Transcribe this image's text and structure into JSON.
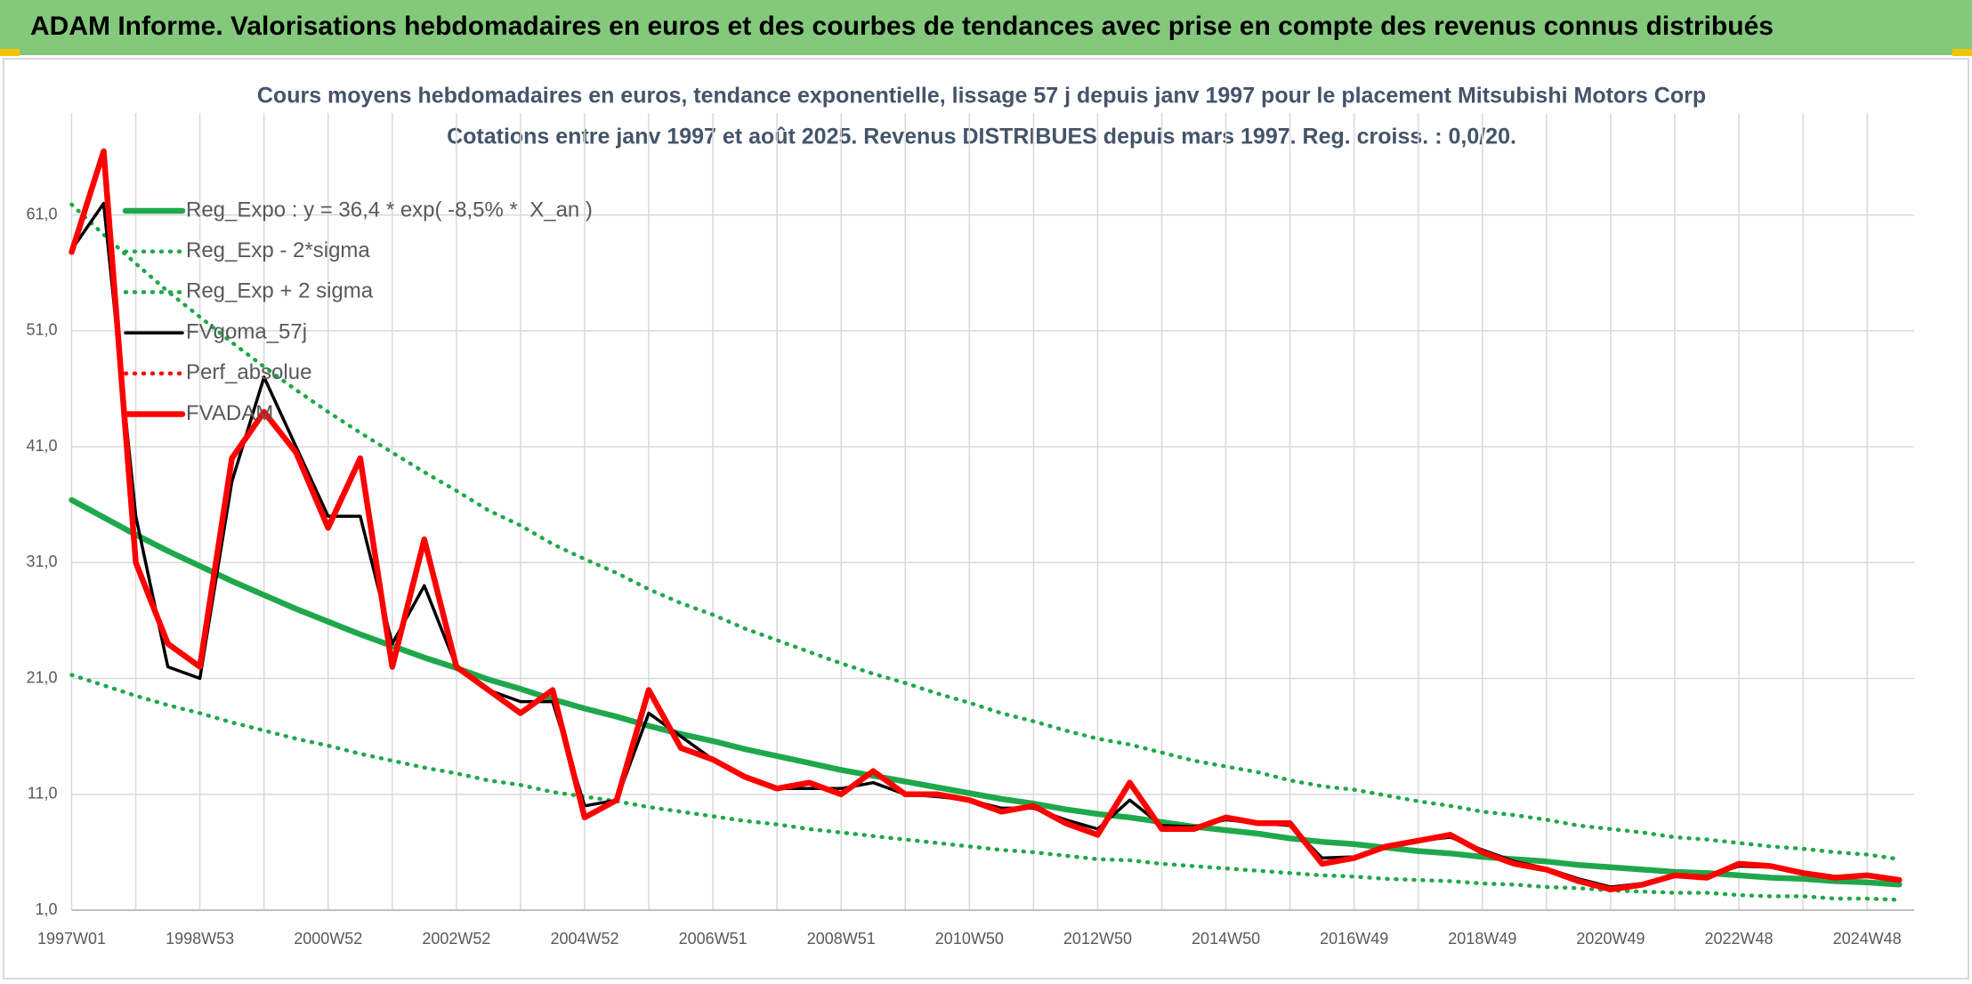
{
  "header": {
    "title": "ADAM Informe. Valorisations hebdomadaires en euros et des courbes de tendances avec prise en compte des revenus connus distribués"
  },
  "chart_data": {
    "type": "line",
    "title": "Cours moyens hebdomadaires en euros, tendance exponentielle, lissage 57 j depuis janv 1997 pour le placement Mitsubishi Motors Corp",
    "subtitle": "Cotations entre janv 1997 et août 2025. Revenus DISTRIBUES depuis mars 1997. Reg. croiss. : 0,0/20.",
    "categories": [
      "1997W01",
      null,
      null,
      null,
      "1998W53",
      null,
      null,
      null,
      "2000W52",
      null,
      null,
      null,
      "2002W52",
      null,
      null,
      null,
      "2004W52",
      null,
      null,
      null,
      "2006W51",
      null,
      null,
      null,
      "2008W51",
      null,
      null,
      null,
      "2010W50",
      null,
      null,
      null,
      "2012W50",
      null,
      null,
      null,
      "2014W50",
      null,
      null,
      null,
      "2016W49",
      null,
      null,
      null,
      "2018W49",
      null,
      null,
      null,
      "2020W49",
      null,
      null,
      null,
      "2022W48",
      null,
      null,
      null,
      "2024W48",
      null
    ],
    "ylim": [
      1,
      69.8
    ],
    "yticks": [
      {
        "value": 1,
        "label": "1,0"
      },
      {
        "value": 11,
        "label": "11,0"
      },
      {
        "value": 21,
        "label": "21,0"
      },
      {
        "value": 31,
        "label": "31,0"
      },
      {
        "value": 41,
        "label": "41,0"
      },
      {
        "value": 51,
        "label": "51,0"
      },
      {
        "value": 61,
        "label": "61,0"
      }
    ],
    "grid": true,
    "legend": "upper left",
    "series": [
      {
        "name": "Reg_Expo : y = 36,4 * exp( -8,5% *  X_an )",
        "color": "#1fa84b",
        "linestyle": "solid",
        "weight": "heavy",
        "values": [
          36.4,
          34.9,
          33.4,
          32.0,
          30.7,
          29.4,
          28.2,
          27.0,
          25.9,
          24.8,
          23.8,
          22.8,
          21.9,
          20.9,
          20.1,
          19.2,
          18.4,
          17.7,
          16.9,
          16.2,
          15.6,
          14.9,
          14.3,
          13.7,
          13.1,
          12.6,
          12.1,
          11.6,
          11.1,
          10.6,
          10.2,
          9.7,
          9.3,
          9.0,
          8.6,
          8.2,
          7.9,
          7.6,
          7.2,
          6.9,
          6.7,
          6.4,
          6.1,
          5.9,
          5.6,
          5.4,
          5.2,
          4.9,
          4.7,
          4.5,
          4.3,
          4.2,
          4.0,
          3.8,
          3.7,
          3.5,
          3.4,
          3.2
        ]
      },
      {
        "name": "Reg_Exp - 2*sigma",
        "color": "#1fa84b",
        "linestyle": "dotted",
        "weight": "medium",
        "values": [
          21.3,
          20.4,
          19.5,
          18.7,
          18.0,
          17.2,
          16.5,
          15.8,
          15.2,
          14.5,
          13.9,
          13.3,
          12.8,
          12.2,
          11.8,
          11.2,
          10.8,
          10.4,
          9.9,
          9.5,
          9.1,
          8.7,
          8.4,
          8.0,
          7.7,
          7.4,
          7.1,
          6.8,
          6.5,
          6.2,
          6.0,
          5.7,
          5.4,
          5.3,
          5.0,
          4.8,
          4.6,
          4.4,
          4.2,
          4.0,
          3.9,
          3.7,
          3.6,
          3.5,
          3.3,
          3.2,
          3.0,
          2.9,
          2.7,
          2.6,
          2.5,
          2.5,
          2.3,
          2.2,
          2.2,
          2.0,
          2.0,
          1.9
        ]
      },
      {
        "name": "Reg_Exp + 2 sigma",
        "color": "#1fa84b",
        "linestyle": "dotted",
        "weight": "medium",
        "values": [
          61.9,
          59.3,
          56.8,
          54.4,
          52.2,
          50.0,
          47.9,
          45.9,
          44.0,
          42.2,
          40.5,
          38.8,
          37.2,
          35.5,
          34.2,
          32.6,
          31.3,
          30.1,
          28.7,
          27.5,
          26.5,
          25.3,
          24.3,
          23.3,
          22.3,
          21.4,
          20.6,
          19.7,
          18.9,
          18.0,
          17.3,
          16.5,
          15.8,
          15.3,
          14.6,
          13.9,
          13.4,
          12.9,
          12.2,
          11.7,
          11.4,
          10.9,
          10.4,
          10.0,
          9.5,
          9.2,
          8.8,
          8.3,
          8.0,
          7.7,
          7.3,
          7.1,
          6.8,
          6.5,
          6.3,
          6.0,
          5.8,
          5.4
        ]
      },
      {
        "name": "FVgoma_57j",
        "color": "#000000",
        "linestyle": "solid",
        "weight": "medium",
        "values": [
          58,
          62,
          35,
          22,
          21,
          38,
          47,
          41,
          35,
          35,
          24,
          29,
          22,
          20,
          19,
          19,
          10,
          10.5,
          18,
          16,
          14,
          12.5,
          11.5,
          11.5,
          11.5,
          12,
          11,
          10.8,
          10.5,
          9.8,
          9.8,
          8.8,
          8,
          10.5,
          8.3,
          8.2,
          8.8,
          8.5,
          8.3,
          5.5,
          5.6,
          6.5,
          7,
          7.3,
          6.2,
          5.2,
          4.6,
          3.7,
          3.0,
          3.3,
          3.9,
          3.9,
          4.8,
          4.7,
          4.3,
          3.9,
          3.9,
          3.6
        ]
      },
      {
        "name": "Perf_absolue",
        "color": "#ff0000",
        "linestyle": "dotted",
        "weight": "medium",
        "values": [
          57.8,
          66.5,
          31,
          24,
          22,
          40,
          44,
          40.5,
          34,
          40,
          22,
          33,
          22,
          20,
          18,
          20,
          9,
          10.5,
          20,
          15,
          14,
          12.5,
          11.5,
          12,
          11,
          13,
          11,
          11,
          10.5,
          9.5,
          10,
          8.5,
          7.5,
          12,
          8,
          8,
          9,
          8.5,
          8.5,
          5,
          5.5,
          6.5,
          7,
          7.5,
          6,
          5,
          4.5,
          3.5,
          2.8,
          3.2,
          4,
          3.8,
          5,
          4.8,
          4.2,
          3.8,
          4,
          3.6
        ]
      },
      {
        "name": "FVADAM",
        "color": "#ff0000",
        "linestyle": "solid",
        "weight": "heavy",
        "values": [
          57.8,
          66.5,
          31,
          24,
          22,
          40,
          44,
          40.5,
          34,
          40,
          22,
          33,
          22,
          20,
          18,
          20,
          9,
          10.5,
          20,
          15,
          14,
          12.5,
          11.5,
          12,
          11,
          13,
          11,
          11,
          10.5,
          9.5,
          10,
          8.5,
          7.5,
          12,
          8,
          8,
          9,
          8.5,
          8.5,
          5,
          5.5,
          6.5,
          7,
          7.5,
          6,
          5,
          4.5,
          3.5,
          2.8,
          3.2,
          4,
          3.8,
          5,
          4.8,
          4.2,
          3.8,
          4,
          3.6
        ]
      }
    ]
  }
}
